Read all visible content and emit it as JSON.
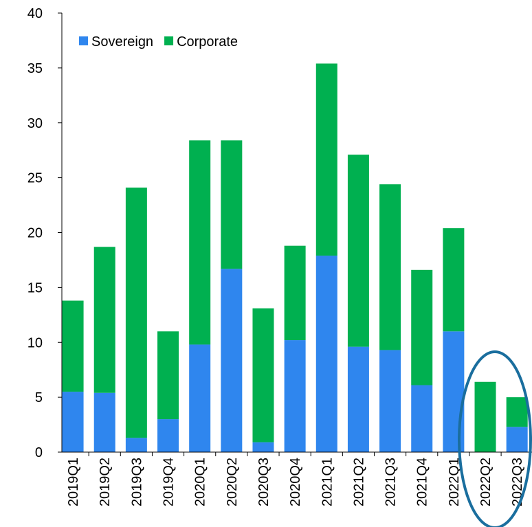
{
  "chart_data": {
    "type": "stacked-bar",
    "categories": [
      "2019Q1",
      "2019Q2",
      "2019Q3",
      "2019Q4",
      "2020Q1",
      "2020Q2",
      "2020Q3",
      "2020Q4",
      "2021Q1",
      "2021Q2",
      "2021Q3",
      "2021Q4",
      "2022Q1",
      "2022Q2",
      "2022Q3"
    ],
    "series": [
      {
        "name": "Sovereign",
        "color": "#2f86ee",
        "values": [
          5.5,
          5.4,
          1.3,
          3.0,
          9.8,
          16.7,
          0.9,
          10.2,
          17.9,
          9.6,
          9.3,
          6.1,
          11.0,
          0,
          2.3
        ]
      },
      {
        "name": "Corporate",
        "color": "#00b050",
        "values": [
          8.3,
          13.3,
          22.8,
          8.0,
          18.6,
          11.7,
          12.2,
          8.6,
          17.5,
          17.5,
          15.1,
          10.5,
          9.4,
          6.4,
          2.7
        ]
      }
    ],
    "ylim": [
      0,
      40
    ],
    "yticks": [
      0,
      5,
      10,
      15,
      20,
      25,
      30,
      35,
      40
    ],
    "legend": "top-left"
  }
}
